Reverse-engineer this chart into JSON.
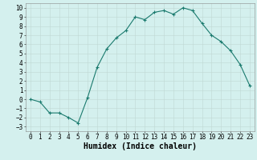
{
  "x": [
    0,
    1,
    2,
    3,
    4,
    5,
    6,
    7,
    8,
    9,
    10,
    11,
    12,
    13,
    14,
    15,
    16,
    17,
    18,
    19,
    20,
    21,
    22,
    23
  ],
  "y": [
    0.0,
    -0.3,
    -1.5,
    -1.5,
    -2.0,
    -2.6,
    0.2,
    3.5,
    5.5,
    6.7,
    7.5,
    9.0,
    8.7,
    9.5,
    9.7,
    9.3,
    10.0,
    9.7,
    8.3,
    7.0,
    6.3,
    5.3,
    3.8,
    1.5
  ],
  "line_color": "#1a7a6e",
  "marker": "+",
  "marker_size": 3,
  "marker_color": "#1a7a6e",
  "bg_color": "#d4f0ee",
  "grid_color": "#c0d8d4",
  "xlabel": "Humidex (Indice chaleur)",
  "xlim": [
    -0.5,
    23.5
  ],
  "ylim": [
    -3.5,
    10.5
  ],
  "yticks": [
    -3,
    -2,
    -1,
    0,
    1,
    2,
    3,
    4,
    5,
    6,
    7,
    8,
    9,
    10
  ],
  "xticks": [
    0,
    1,
    2,
    3,
    4,
    5,
    6,
    7,
    8,
    9,
    10,
    11,
    12,
    13,
    14,
    15,
    16,
    17,
    18,
    19,
    20,
    21,
    22,
    23
  ],
  "tick_fontsize": 5.5,
  "label_fontsize": 7
}
